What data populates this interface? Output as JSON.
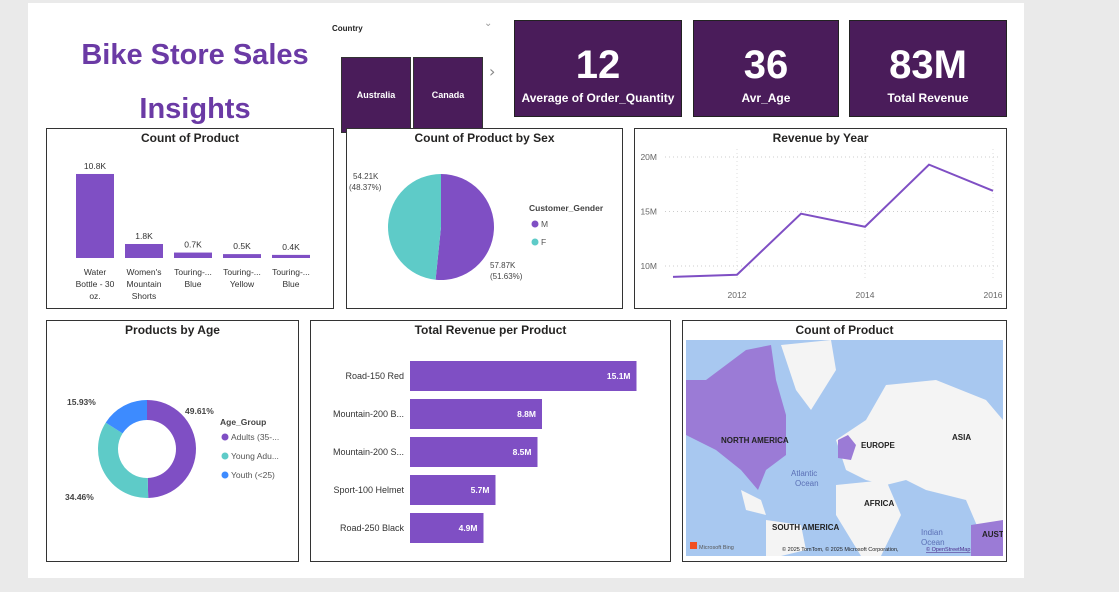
{
  "header": {
    "title": "Bike Store Sales Insights"
  },
  "slicer": {
    "label": "Country",
    "options": [
      "Australia",
      "Canada"
    ]
  },
  "kpis": [
    {
      "value": "12",
      "label": "Average of Order_Quantity"
    },
    {
      "value": "36",
      "label": "Avr_Age"
    },
    {
      "value": "83M",
      "label": "Total Revenue"
    }
  ],
  "colors": {
    "purple": "#7f4fc4",
    "teal": "#5ecbc8",
    "blue": "#3d8bff",
    "kpi_bg": "#4a1c5a",
    "title": "#6b3aa5"
  },
  "chart_data": [
    {
      "type": "bar",
      "title": "Count of Product",
      "categories": [
        "Water Bottle - 30 oz.",
        "Women's Mountain Shorts",
        "Touring-... Blue",
        "Touring-... Yellow",
        "Touring-... Blue"
      ],
      "category_lines": [
        [
          "Water",
          "Bottle - 30",
          "oz."
        ],
        [
          "Women's",
          "Mountain",
          "Shorts"
        ],
        [
          "Touring-...",
          "Blue"
        ],
        [
          "Touring-...",
          "Yellow"
        ],
        [
          "Touring-...",
          "Blue"
        ]
      ],
      "values": [
        10.8,
        1.8,
        0.7,
        0.5,
        0.4
      ],
      "labels": [
        "10.8K",
        "1.8K",
        "0.7K",
        "0.5K",
        "0.4K"
      ]
    },
    {
      "type": "pie",
      "title": "Count of Product by Sex",
      "legend_title": "Customer_Gender",
      "slices": [
        {
          "name": "M",
          "value": 57.87,
          "label": "57.87K",
          "pct": "(51.63%)"
        },
        {
          "name": "F",
          "value": 54.21,
          "label": "54.21K",
          "pct": "(48.37%)"
        }
      ]
    },
    {
      "type": "line",
      "title": "Revenue by Year",
      "x": [
        2011,
        2012,
        2013,
        2014,
        2015,
        2016
      ],
      "y": [
        9.0,
        9.2,
        14.8,
        13.6,
        19.3,
        16.9
      ],
      "yticks": [
        "10M",
        "15M",
        "20M"
      ],
      "xticks": [
        "2012",
        "2014",
        "2016"
      ],
      "ylim": [
        8,
        20
      ],
      "grid": true
    },
    {
      "type": "pie",
      "title": "Products by Age",
      "legend_title": "Age_Group",
      "slices": [
        {
          "name": "Adults (35-...",
          "value": 49.61,
          "label": "49.61%"
        },
        {
          "name": "Young Adu...",
          "value": 34.46,
          "label": "34.46%"
        },
        {
          "name": "Youth (<25)",
          "value": 15.93,
          "label": "15.93%"
        }
      ]
    },
    {
      "type": "bar",
      "orientation": "horizontal",
      "title": "Total Revenue per Product",
      "categories": [
        "Road-150 Red",
        "Mountain-200 B...",
        "Mountain-200 S...",
        "Sport-100 Helmet",
        "Road-250 Black"
      ],
      "values": [
        15.1,
        8.8,
        8.5,
        5.7,
        4.9
      ],
      "labels": [
        "15.1M",
        "8.8M",
        "8.5M",
        "5.7M",
        "4.9M"
      ]
    }
  ],
  "map": {
    "title": "Count of Product",
    "labels": [
      "NORTH AMERICA",
      "EUROPE",
      "ASIA",
      "AFRICA",
      "SOUTH AMERICA",
      "AUST",
      "Atlantic",
      "Ocean",
      "Indian",
      "Ocean"
    ],
    "logo": "Microsoft Bing",
    "attribution": "© 2025 TomTom, © 2025 Microsoft Corporation,",
    "osm": "© OpenStreetMap"
  }
}
